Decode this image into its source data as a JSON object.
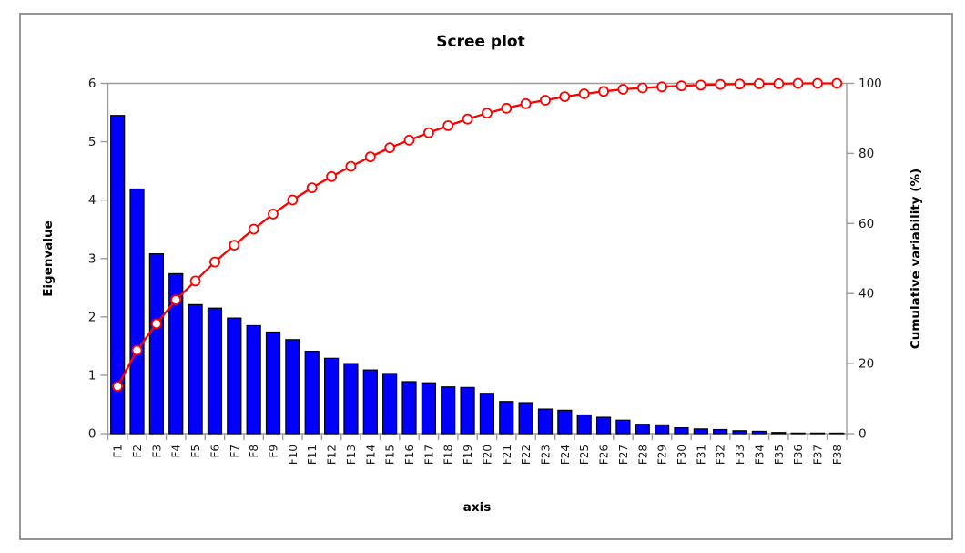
{
  "window": {
    "background": "#ffffff",
    "border_color": "#8a8a8a"
  },
  "chart_data": {
    "type": "bar",
    "subtype": "bar-line-combo",
    "title": "Scree plot",
    "xlabel": "axis",
    "ylabel": "Eigenvalue",
    "y2label": "Cumulative variability (%)",
    "legend_position": "none",
    "grid": false,
    "categories": [
      "F1",
      "F2",
      "F3",
      "F4",
      "F5",
      "F6",
      "F7",
      "F8",
      "F9",
      "F10",
      "F11",
      "F12",
      "F13",
      "F14",
      "F15",
      "F16",
      "F17",
      "F18",
      "F19",
      "F20",
      "F21",
      "F22",
      "F23",
      "F24",
      "F25",
      "F26",
      "F27",
      "F28",
      "F29",
      "F30",
      "F31",
      "F32",
      "F33",
      "F34",
      "F35",
      "F36",
      "F37",
      "F38"
    ],
    "left_axis": {
      "label": "Eigenvalue",
      "min": 0,
      "max": 6,
      "ticks": [
        0,
        1,
        2,
        3,
        4,
        5,
        6
      ]
    },
    "right_axis": {
      "label": "Cumulative variability (%)",
      "min": 0,
      "max": 100,
      "ticks": [
        0,
        20,
        40,
        60,
        80,
        100
      ]
    },
    "series": [
      {
        "name": "Eigenvalue",
        "type": "bar",
        "axis": "left",
        "color": "#0000FF",
        "border_color": "#000000",
        "values": [
          5.45,
          4.19,
          3.08,
          2.74,
          2.21,
          2.15,
          1.98,
          1.85,
          1.74,
          1.61,
          1.41,
          1.29,
          1.2,
          1.09,
          1.03,
          0.89,
          0.87,
          0.8,
          0.79,
          0.69,
          0.55,
          0.53,
          0.42,
          0.4,
          0.32,
          0.28,
          0.23,
          0.16,
          0.15,
          0.1,
          0.08,
          0.07,
          0.05,
          0.04,
          0.02,
          0.01,
          0.01,
          0.005
        ]
      },
      {
        "name": "Cumulative variability (%)",
        "type": "line",
        "axis": "right",
        "color": "#FF0000",
        "marker_fill": "#FFFFFF",
        "marker_stroke": "#FF0000",
        "values": [
          13.5,
          23.8,
          31.4,
          38.2,
          43.6,
          49.0,
          53.8,
          58.4,
          62.7,
          66.7,
          70.2,
          73.4,
          76.3,
          79.0,
          81.6,
          83.8,
          85.9,
          87.9,
          89.8,
          91.5,
          92.9,
          94.2,
          95.2,
          96.2,
          97.0,
          97.7,
          98.3,
          98.7,
          99.0,
          99.3,
          99.5,
          99.7,
          99.8,
          99.9,
          99.9,
          100.0,
          100.0,
          100.0
        ]
      }
    ],
    "axis_line_color": "#9c9c9c"
  }
}
